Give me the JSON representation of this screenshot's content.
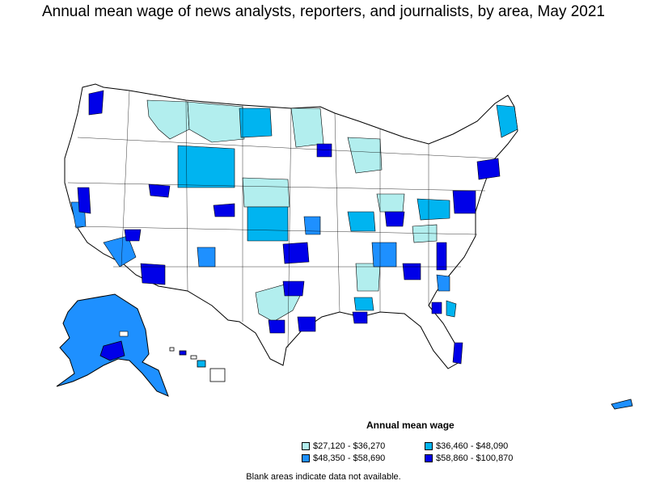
{
  "title": "Annual mean wage of news analysts, reporters, and journalists, by area, May 2021",
  "legend": {
    "title": "Annual mean wage",
    "items": [
      {
        "label": "$27,120 - $36,270",
        "color": "#b2eeee"
      },
      {
        "label": "$36,460 - $48,090",
        "color": "#00b4f0"
      },
      {
        "label": "$48,350 - $58,690",
        "color": "#1e90ff"
      },
      {
        "label": "$58,860 - $100,870",
        "color": "#0000e8"
      }
    ]
  },
  "note": "Blank areas indicate data not available.",
  "colors": {
    "blank": "#ffffff",
    "border": "#000000"
  }
}
